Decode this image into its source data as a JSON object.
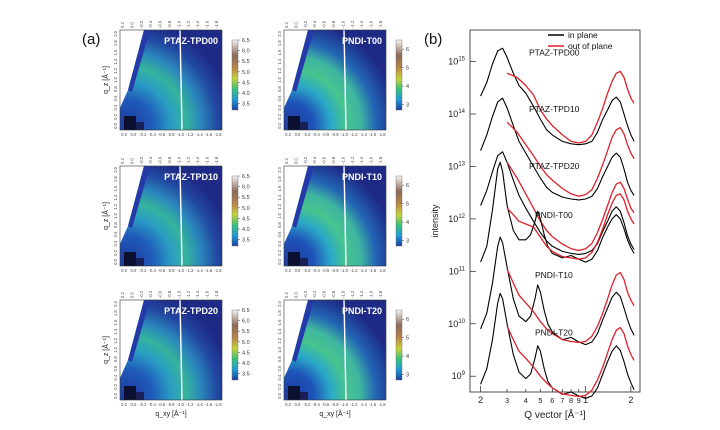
{
  "figure": {
    "panel_a_label": "(a)",
    "panel_b_label": "(b)"
  },
  "colors": {
    "in_plane": "#000000",
    "out_of_plane": "#e0202a",
    "map_low": "#1d2a86",
    "map_high": "#f2f0ee",
    "slice_line": "#ffffff"
  },
  "maps": {
    "xlabel": "q_xy [Å⁻¹]",
    "ylabel": "q_z [Å⁻¹]",
    "top_ticks": [
      "0.2",
      "0.0",
      "-0.2",
      "-0.4",
      "-0.6",
      "-0.8",
      "-1.0",
      "-1.2",
      "-1.4",
      "-1.6",
      "-1.8"
    ],
    "side_ticks": [
      "2.0",
      "1.8",
      "1.6",
      "1.4",
      "1.2",
      "1.0",
      "0.8",
      "0.6",
      "0.4",
      "0.2",
      "0.0"
    ],
    "panels": [
      {
        "label": "PTAZ-TPD00",
        "colorbar_ticks": [
          "6.5",
          "6.0",
          "5.5",
          "5.0",
          "4.5",
          "4.0",
          "3.5"
        ],
        "colorbar_range": [
          3.2,
          6.5
        ]
      },
      {
        "label": "PNDI-T00",
        "colorbar_ticks": [
          "6",
          "5",
          "4",
          "3"
        ],
        "colorbar_range": [
          2.7,
          6.5
        ]
      },
      {
        "label": "PTAZ-TPD10",
        "colorbar_ticks": [
          "6.5",
          "6.0",
          "5.5",
          "5.0",
          "4.5",
          "4.0",
          "3.5"
        ],
        "colorbar_range": [
          3.2,
          6.5
        ]
      },
      {
        "label": "PNDI-T10",
        "colorbar_ticks": [
          "6",
          "5",
          "4",
          "3"
        ],
        "colorbar_range": [
          2.7,
          6.5
        ]
      },
      {
        "label": "PTAZ-TPD20",
        "colorbar_ticks": [
          "6.5",
          "6.0",
          "5.5",
          "5.0",
          "4.5",
          "4.0",
          "3.5"
        ],
        "colorbar_range": [
          3.2,
          6.5
        ]
      },
      {
        "label": "PNDI-T20",
        "colorbar_ticks": [
          "6",
          "5",
          "4",
          "3"
        ],
        "colorbar_range": [
          2.7,
          6.5
        ]
      }
    ]
  },
  "chart_data": {
    "type": "line",
    "xlabel": "Q vector [Å⁻¹]",
    "ylabel": "intensity",
    "xscale": "log",
    "yscale": "log",
    "xlim": [
      0.17,
      2.3
    ],
    "ylim": [
      500000000.0,
      4000000000000000.0
    ],
    "x_tick_labels": [
      {
        "value": 0.2,
        "label": "2"
      },
      {
        "value": 0.3,
        "label": "3"
      },
      {
        "value": 0.4,
        "label": "4"
      },
      {
        "value": 0.5,
        "label": "5"
      },
      {
        "value": 0.6,
        "label": "6"
      },
      {
        "value": 0.7,
        "label": "7"
      },
      {
        "value": 0.8,
        "label": "8"
      },
      {
        "value": 0.9,
        "label": "9"
      },
      {
        "value": 1.0,
        "label": "1"
      },
      {
        "value": 2.0,
        "label": "2"
      }
    ],
    "y_tick_labels": [
      {
        "value": 1000000000.0,
        "base": "10",
        "exp": "9"
      },
      {
        "value": 10000000000.0,
        "base": "10",
        "exp": "10"
      },
      {
        "value": 100000000000.0,
        "base": "10",
        "exp": "11"
      },
      {
        "value": 1000000000000.0,
        "base": "10",
        "exp": "12"
      },
      {
        "value": 10000000000000.0,
        "base": "10",
        "exp": "13"
      },
      {
        "value": 100000000000000.0,
        "base": "10",
        "exp": "14"
      },
      {
        "value": 1000000000000000.0,
        "base": "10",
        "exp": "15"
      }
    ],
    "legend": {
      "placement": "top-right",
      "entries": [
        {
          "name": "in plane",
          "color": "#000000"
        },
        {
          "name": "out of plane",
          "color": "#e0202a"
        }
      ]
    },
    "sample_labels": [
      {
        "text": "PTAZ-TPD00",
        "x": 0.42,
        "y": 1300000000000000.0
      },
      {
        "text": "PTAZ-TPD10",
        "x": 0.42,
        "y": 110000000000000.0
      },
      {
        "text": "PTAZ-TPD20",
        "x": 0.42,
        "y": 9000000000000.0
      },
      {
        "text": "PNDI-T00",
        "x": 0.46,
        "y": 1050000000000.0
      },
      {
        "text": "PNDI-T10",
        "x": 0.46,
        "y": 75000000000.0
      },
      {
        "text": "PNDI-T20",
        "x": 0.46,
        "y": 6000000000.0
      }
    ],
    "series": [
      {
        "name": "in plane",
        "sample": "PTAZ-TPD00",
        "x": [
          0.2,
          0.22,
          0.24,
          0.26,
          0.28,
          0.3,
          0.33,
          0.36,
          0.4,
          0.45,
          0.5,
          0.55,
          0.6,
          0.7,
          0.8,
          0.9,
          1.0,
          1.1,
          1.2,
          1.3,
          1.4,
          1.5,
          1.6,
          1.7,
          1.8,
          1.9,
          2.0,
          2.1
        ],
        "y": [
          220000000000000.0,
          400000000000000.0,
          900000000000000.0,
          1600000000000000.0,
          1800000000000000.0,
          1200000000000000.0,
          600000000000000.0,
          350000000000000.0,
          250000000000000.0,
          140000000000000.0,
          80000000000000.0,
          50000000000000.0,
          40000000000000.0,
          30000000000000.0,
          27000000000000.0,
          26000000000000.0,
          27000000000000.0,
          30000000000000.0,
          45000000000000.0,
          80000000000000.0,
          120000000000000.0,
          180000000000000.0,
          210000000000000.0,
          170000000000000.0,
          100000000000000.0,
          60000000000000.0,
          40000000000000.0,
          30000000000000.0
        ]
      },
      {
        "name": "out of plane",
        "sample": "PTAZ-TPD00",
        "x": [
          0.3,
          0.35,
          0.4,
          0.45,
          0.5,
          0.55,
          0.6,
          0.7,
          0.8,
          0.9,
          1.0,
          1.1,
          1.2,
          1.3,
          1.4,
          1.5,
          1.6,
          1.7,
          1.8,
          1.9,
          2.0,
          2.1
        ],
        "y": [
          600000000000000.0,
          500000000000000.0,
          350000000000000.0,
          230000000000000.0,
          120000000000000.0,
          80000000000000.0,
          60000000000000.0,
          40000000000000.0,
          30000000000000.0,
          28000000000000.0,
          30000000000000.0,
          40000000000000.0,
          70000000000000.0,
          130000000000000.0,
          250000000000000.0,
          420000000000000.0,
          600000000000000.0,
          650000000000000.0,
          500000000000000.0,
          300000000000000.0,
          200000000000000.0,
          160000000000000.0
        ]
      },
      {
        "name": "in plane",
        "sample": "PTAZ-TPD10",
        "x": [
          0.2,
          0.22,
          0.24,
          0.26,
          0.28,
          0.3,
          0.33,
          0.36,
          0.4,
          0.45,
          0.5,
          0.55,
          0.6,
          0.7,
          0.8,
          0.9,
          1.0,
          1.1,
          1.2,
          1.3,
          1.4,
          1.5,
          1.6,
          1.7,
          1.8,
          1.9,
          2.0,
          2.1
        ],
        "y": [
          20000000000000.0,
          40000000000000.0,
          90000000000000.0,
          170000000000000.0,
          200000000000000.0,
          130000000000000.0,
          60000000000000.0,
          30000000000000.0,
          18000000000000.0,
          10000000000000.0,
          6000000000000.0,
          4000000000000.0,
          3200000000000.0,
          2600000000000.0,
          2400000000000.0,
          2300000000000.0,
          2400000000000.0,
          2700000000000.0,
          3800000000000.0,
          6500000000000.0,
          10000000000000.0,
          15000000000000.0,
          18000000000000.0,
          15000000000000.0,
          9000000000000.0,
          5000000000000.0,
          3500000000000.0,
          2800000000000.0
        ]
      },
      {
        "name": "out of plane",
        "sample": "PTAZ-TPD10",
        "x": [
          0.3,
          0.35,
          0.4,
          0.45,
          0.5,
          0.55,
          0.6,
          0.7,
          0.8,
          0.9,
          1.0,
          1.1,
          1.2,
          1.3,
          1.4,
          1.5,
          1.6,
          1.7,
          1.8,
          1.9,
          2.0,
          2.1
        ],
        "y": [
          70000000000000.0,
          45000000000000.0,
          26000000000000.0,
          16000000000000.0,
          10000000000000.0,
          7000000000000.0,
          5500000000000.0,
          3800000000000.0,
          3000000000000.0,
          2700000000000.0,
          2900000000000.0,
          3600000000000.0,
          6000000000000.0,
          11000000000000.0,
          20000000000000.0,
          36000000000000.0,
          50000000000000.0,
          55000000000000.0,
          42000000000000.0,
          26000000000000.0,
          18000000000000.0,
          14000000000000.0
        ]
      },
      {
        "name": "in plane",
        "sample": "PTAZ-TPD20",
        "x": [
          0.2,
          0.22,
          0.24,
          0.26,
          0.28,
          0.3,
          0.33,
          0.36,
          0.4,
          0.45,
          0.5,
          0.55,
          0.6,
          0.7,
          0.8,
          0.9,
          1.0,
          1.1,
          1.2,
          1.3,
          1.4,
          1.5,
          1.6,
          1.7,
          1.8,
          1.9,
          2.0,
          2.1
        ],
        "y": [
          1800000000000.0,
          3500000000000.0,
          8000000000000.0,
          16000000000000.0,
          19000000000000.0,
          12000000000000.0,
          5500000000000.0,
          2800000000000.0,
          1600000000000.0,
          900000000000.0,
          550000000000.0,
          380000000000.0,
          300000000000.0,
          240000000000.0,
          220000000000.0,
          210000000000.0,
          220000000000.0,
          250000000000.0,
          340000000000.0,
          580000000000.0,
          900000000000.0,
          1400000000000.0,
          1700000000000.0,
          1400000000000.0,
          850000000000.0,
          480000000000.0,
          330000000000.0,
          260000000000.0
        ]
      },
      {
        "name": "out of plane",
        "sample": "PTAZ-TPD20",
        "x": [
          0.3,
          0.35,
          0.4,
          0.45,
          0.5,
          0.55,
          0.6,
          0.7,
          0.8,
          0.9,
          1.0,
          1.1,
          1.2,
          1.3,
          1.4,
          1.5,
          1.6,
          1.7,
          1.8,
          1.9,
          2.0,
          2.1
        ],
        "y": [
          12000000000000.0,
          6000000000000.0,
          3000000000000.0,
          1600000000000.0,
          900000000000.0,
          600000000000.0,
          460000000000.0,
          330000000000.0,
          270000000000.0,
          250000000000.0,
          270000000000.0,
          340000000000.0,
          550000000000.0,
          1000000000000.0,
          1800000000000.0,
          3200000000000.0,
          4600000000000.0,
          5000000000000.0,
          3800000000000.0,
          2400000000000.0,
          1600000000000.0,
          1300000000000.0
        ]
      },
      {
        "name": "in plane",
        "sample": "PNDI-T00",
        "x": [
          0.2,
          0.22,
          0.24,
          0.26,
          0.27,
          0.28,
          0.3,
          0.33,
          0.36,
          0.4,
          0.43,
          0.46,
          0.48,
          0.5,
          0.53,
          0.56,
          0.6,
          0.7,
          0.8,
          0.9,
          1.0,
          1.1,
          1.2,
          1.3,
          1.4,
          1.5,
          1.6,
          1.7,
          1.8,
          1.9,
          2.0,
          2.1
        ],
        "y": [
          150000000000.0,
          300000000000.0,
          1500000000000.0,
          9000000000000.0,
          12000000000000.0,
          8000000000000.0,
          1800000000000.0,
          600000000000.0,
          400000000000.0,
          400000000000.0,
          500000000000.0,
          900000000000.0,
          1400000000000.0,
          1000000000000.0,
          500000000000.0,
          300000000000.0,
          220000000000.0,
          180000000000.0,
          200000000000.0,
          170000000000.0,
          150000000000.0,
          170000000000.0,
          250000000000.0,
          450000000000.0,
          700000000000.0,
          1000000000000.0,
          1200000000000.0,
          1000000000000.0,
          650000000000.0,
          400000000000.0,
          280000000000.0,
          220000000000.0
        ]
      },
      {
        "name": "out of plane",
        "sample": "PNDI-T00",
        "x": [
          0.3,
          0.33,
          0.36,
          0.4,
          0.45,
          0.5,
          0.55,
          0.6,
          0.7,
          0.8,
          0.9,
          1.0,
          1.1,
          1.2,
          1.3,
          1.4,
          1.5,
          1.6,
          1.7,
          1.8,
          1.9,
          2.0,
          2.1
        ],
        "y": [
          1600000000000.0,
          1200000000000.0,
          900000000000.0,
          800000000000.0,
          700000000000.0,
          450000000000.0,
          300000000000.0,
          240000000000.0,
          190000000000.0,
          180000000000.0,
          170000000000.0,
          180000000000.0,
          230000000000.0,
          360000000000.0,
          650000000000.0,
          1200000000000.0,
          2000000000000.0,
          2800000000000.0,
          3000000000000.0,
          2300000000000.0,
          1400000000000.0,
          1000000000000.0,
          800000000000.0
        ]
      },
      {
        "name": "in plane",
        "sample": "PNDI-T10",
        "x": [
          0.2,
          0.22,
          0.24,
          0.26,
          0.27,
          0.28,
          0.3,
          0.33,
          0.36,
          0.4,
          0.43,
          0.46,
          0.48,
          0.5,
          0.53,
          0.56,
          0.6,
          0.7,
          0.8,
          0.9,
          1.0,
          1.1,
          1.2,
          1.3,
          1.4,
          1.5,
          1.6,
          1.7,
          1.8,
          1.9,
          2.0,
          2.1
        ],
        "y": [
          8000000000.0,
          16000000000.0,
          60000000000.0,
          300000000000.0,
          450000000000.0,
          350000000000.0,
          120000000000.0,
          30000000000.0,
          14000000000.0,
          11000000000.0,
          14000000000.0,
          30000000000.0,
          55000000000.0,
          40000000000.0,
          18000000000.0,
          10000000000.0,
          7000000000.0,
          5000000000.0,
          5500000000.0,
          4500000000.0,
          4000000000.0,
          4500000000.0,
          6500000000.0,
          12000000000.0,
          20000000000.0,
          32000000000.0,
          40000000000.0,
          33000000000.0,
          20000000000.0,
          12000000000.0,
          8000000000.0,
          6000000000.0
        ]
      },
      {
        "name": "out of plane",
        "sample": "PNDI-T10",
        "x": [
          0.3,
          0.33,
          0.36,
          0.4,
          0.45,
          0.5,
          0.55,
          0.6,
          0.7,
          0.8,
          0.9,
          1.0,
          1.1,
          1.2,
          1.3,
          1.4,
          1.5,
          1.6,
          1.7,
          1.8,
          1.9,
          2.0,
          2.1
        ],
        "y": [
          110000000000.0,
          60000000000.0,
          35000000000.0,
          25000000000.0,
          17000000000.0,
          11000000000.0,
          8000000000.0,
          6500000000.0,
          5000000000.0,
          4600000000.0,
          4400000000.0,
          4600000000.0,
          5800000000.0,
          9000000000.0,
          16000000000.0,
          30000000000.0,
          55000000000.0,
          85000000000.0,
          95000000000.0,
          70000000000.0,
          40000000000.0,
          28000000000.0,
          22000000000.0
        ]
      },
      {
        "name": "in plane",
        "sample": "PNDI-T20",
        "x": [
          0.2,
          0.22,
          0.24,
          0.26,
          0.27,
          0.28,
          0.3,
          0.33,
          0.36,
          0.4,
          0.43,
          0.46,
          0.48,
          0.5,
          0.53,
          0.56,
          0.6,
          0.7,
          0.8,
          0.9,
          1.0,
          1.1,
          1.2,
          1.3,
          1.4,
          1.5,
          1.6,
          1.7,
          1.8,
          1.9,
          2.0,
          2.1
        ],
        "y": [
          700000000.0,
          1400000000.0,
          5000000000.0,
          25000000000.0,
          38000000000.0,
          30000000000.0,
          10000000000.0,
          2600000000.0,
          1200000000.0,
          900000000.0,
          1100000000.0,
          2200000000.0,
          3800000000.0,
          3000000000.0,
          1400000000.0,
          800000000.0,
          600000000.0,
          450000000.0,
          500000000.0,
          420000000.0,
          380000000.0,
          420000000.0,
          600000000.0,
          1100000000.0,
          1900000000.0,
          3000000000.0,
          3800000000.0,
          3100000000.0,
          1900000000.0,
          1100000000.0,
          750000000.0,
          550000000.0
        ]
      },
      {
        "name": "out of plane",
        "sample": "PNDI-T20",
        "x": [
          0.3,
          0.33,
          0.36,
          0.4,
          0.45,
          0.5,
          0.55,
          0.6,
          0.7,
          0.8,
          0.9,
          1.0,
          1.1,
          1.2,
          1.3,
          1.4,
          1.5,
          1.6,
          1.7,
          1.8,
          1.9,
          2.0,
          2.1
        ],
        "y": [
          9000000000.0,
          5000000000.0,
          3000000000.0,
          2200000000.0,
          1500000000.0,
          1000000000.0,
          750000000.0,
          600000000.0,
          460000000.0,
          430000000.0,
          410000000.0,
          430000000.0,
          540000000.0,
          850000000.0,
          1500000000.0,
          2800000000.0,
          5000000000.0,
          7500000000.0,
          8500000000.0,
          6500000000.0,
          3800000000.0,
          2600000000.0,
          2000000000.0
        ]
      }
    ]
  }
}
